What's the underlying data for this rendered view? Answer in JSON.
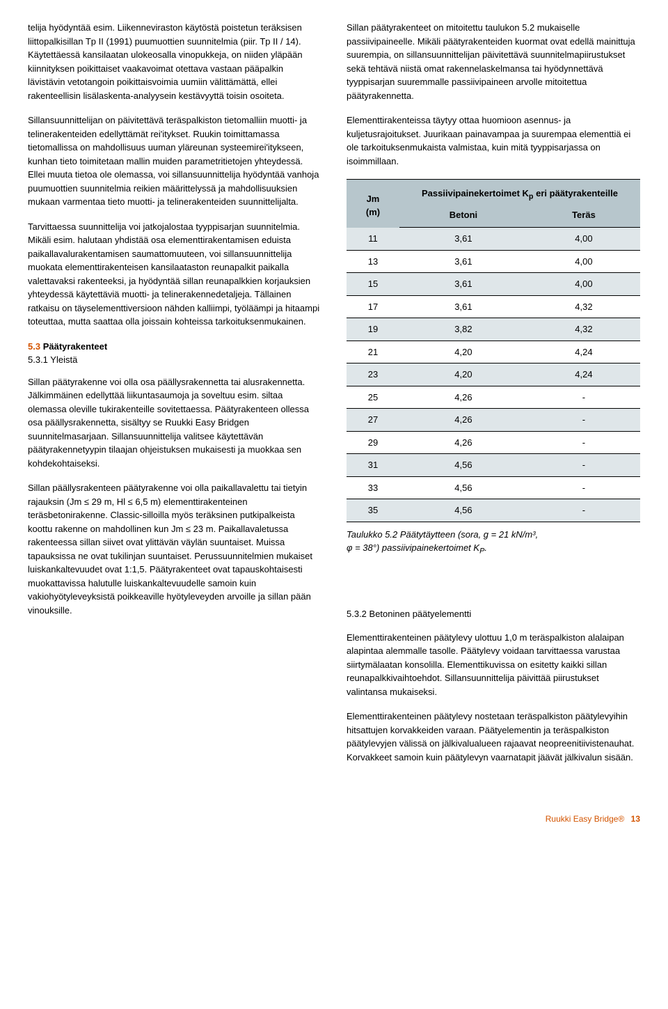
{
  "left": {
    "p1": "telija hyödyntää esim. Liikenneviraston käytöstä poistetun teräksisen liittopalkisillan Tp II (1991) puumuottien suunnitelmia (piir. Tp II / 14). Käytettäessä kansilaatan ulokeosalla vinopukkeja, on niiden yläpään kiinnityksen poikittaiset vaakavoimat otettava vastaan pääpalkin lävistävin vetotangoin poikittaisvoimia uumiin välittämättä, ellei rakenteellisin lisälaskenta-analyysein kestävyyttä toisin osoiteta.",
    "p2": "Sillansuunnittelijan on päivitettävä teräspalkiston tietomalliin muotti- ja telinerakenteiden edellyttämät rei'itykset. Ruukin toimittamassa tietomallissa on mahdollisuus uuman yläreunan systeemirei'itykseen, kunhan tieto toimitetaan mallin muiden parametritietojen yhteydessä. Ellei muuta tietoa ole olemassa, voi sillansuunnittelija hyödyntää vanhoja puumuottien suunnitelmia reikien määrittelyssä ja mahdollisuuksien mukaan varmentaa tieto muotti- ja telinerakenteiden suunnittelijalta.",
    "p3": "Tarvittaessa suunnittelija voi jatkojalostaa tyyppisarjan suunnitelmia. Mikäli esim. halutaan yhdistää osa elementtirakentamisen eduista paikallavalurakentamisen saumattomuuteen, voi sillansuunnittelija muokata elementtirakenteisen kansilaataston reunapalkit paikalla valettavaksi rakenteeksi, ja hyödyntää sillan reunapalkkien korjauksien yhteydessä käytettäviä muotti- ja telinerakennedetaljeja. Tällainen ratkaisu on täyselementtiversioon nähden kalliimpi, työläämpi ja hitaampi toteuttaa, mutta saattaa olla joissain kohteissa tarkoituksenmukainen.",
    "h53_num": "5.3",
    "h53_txt": " Päätyrakenteet",
    "h531": "5.3.1 Yleistä",
    "p4": "Sillan päätyrakenne voi olla osa päällysrakennetta tai alusrakennetta. Jälkimmäinen edellyttää liikuntasaumoja ja soveltuu esim. siltaa olemassa oleville tukirakenteille sovitettaessa. Päätyrakenteen ollessa osa päällysrakennetta, sisältyy se Ruukki Easy Bridgen suunnitelmasarjaan. Sillansuunnittelija valitsee käytettävän päätyrakennetyypin tilaajan ohjeistuksen mukaisesti ja muokkaa sen kohdekohtaiseksi.",
    "p5": "Sillan päällysrakenteen päätyrakenne voi olla paikallavalettu tai tietyin rajauksin (Jm ≤ 29 m, Hl ≤ 6,5 m) elementtirakenteinen teräsbetonirakenne. Classic-silloilla myös teräksinen putkipalkeista koottu rakenne on mahdollinen kun Jm ≤ 23 m. Paikallavaletussa rakenteessa sillan siivet ovat ylittävän väylän suuntaiset. Muissa tapauksissa ne ovat tukilinjan suuntaiset. Perussuunnitelmien mukaiset luiskankaltevuudet ovat 1:1,5. Päätyrakenteet ovat tapauskohtaisesti muokattavissa halutulle luiskankaltevuudelle samoin kuin vakiohyötyleveyksistä poikkeaville hyötyleveyden arvoille ja sillan pään vinouksille."
  },
  "right": {
    "p1": "Sillan päätyrakenteet on mitoitettu taulukon 5.2 mukaiselle passiivipaineelle. Mikäli päätyrakenteiden kuormat ovat edellä mainittuja suurempia, on sillansuunnittelijan päivitettävä suunnitelmapiirustukset sekä tehtävä niistä omat rakennelaskelmansa tai hyödynnettävä tyyppisarjan suuremmalle passiivipaineen arvolle mitoitettua päätyrakennetta.",
    "p2": "Elementtirakenteissa täytyy ottaa huomioon asennus- ja kuljetusrajoitukset. Juurikaan painavampaa ja suurempaa elementtiä ei ole tarkoituksenmukaista valmistaa, kuin mitä tyyppisarjassa on isoimmillaan.",
    "table": {
      "col_jm": "Jm\n(m)",
      "col_kp": "Passiivipainekertoimet K",
      "col_kp_sub": "p",
      "col_kp2": " eri päätyrakenteille",
      "sub_betoni": "Betoni",
      "sub_teras": "Teräs",
      "rows": [
        {
          "jm": "11",
          "b": "3,61",
          "t": "4,00"
        },
        {
          "jm": "13",
          "b": "3,61",
          "t": "4,00"
        },
        {
          "jm": "15",
          "b": "3,61",
          "t": "4,00"
        },
        {
          "jm": "17",
          "b": "3,61",
          "t": "4,32"
        },
        {
          "jm": "19",
          "b": "3,82",
          "t": "4,32"
        },
        {
          "jm": "21",
          "b": "4,20",
          "t": "4,24"
        },
        {
          "jm": "23",
          "b": "4,20",
          "t": "4,24"
        },
        {
          "jm": "25",
          "b": "4,26",
          "t": "-"
        },
        {
          "jm": "27",
          "b": "4,26",
          "t": "-"
        },
        {
          "jm": "29",
          "b": "4,26",
          "t": "-"
        },
        {
          "jm": "31",
          "b": "4,56",
          "t": "-"
        },
        {
          "jm": "33",
          "b": "4,56",
          "t": "-"
        },
        {
          "jm": "35",
          "b": "4,56",
          "t": "-"
        }
      ]
    },
    "caption1": "Taulukko 5.2 Päätytäytteen (sora, g = 21 kN/m³,",
    "caption2": "φ = 38°) passiivipainekertoimet K",
    "caption2_sub": "P",
    "caption2_end": ".",
    "h532": "5.3.2 Betoninen päätyelementti",
    "p3": "Elementtirakenteinen päätylevy ulottuu 1,0 m teräspalkiston alalaipan alapintaa alemmalle tasolle. Päätylevy voidaan tarvittaessa varustaa siirtymälaatan konsolilla. Elementtikuvissa on esitetty kaikki sillan reunapalkkivaihtoehdot. Sillansuunnittelija päivittää piirustukset valintansa mukaiseksi.",
    "p4": "Elementtirakenteinen päätylevy nostetaan teräspalkiston päätylevyihin hitsattujen korvakkeiden varaan. Päätyelementin ja teräspalkiston päätylevyjen välissä on jälkivalualueen rajaavat neopreenitiivistenauhat. Korvakkeet samoin kuin päätylevyn vaarnatapit jäävät jälkivalun sisään."
  },
  "footer": {
    "brand": "Ruukki Easy Bridge®",
    "page": "13"
  }
}
